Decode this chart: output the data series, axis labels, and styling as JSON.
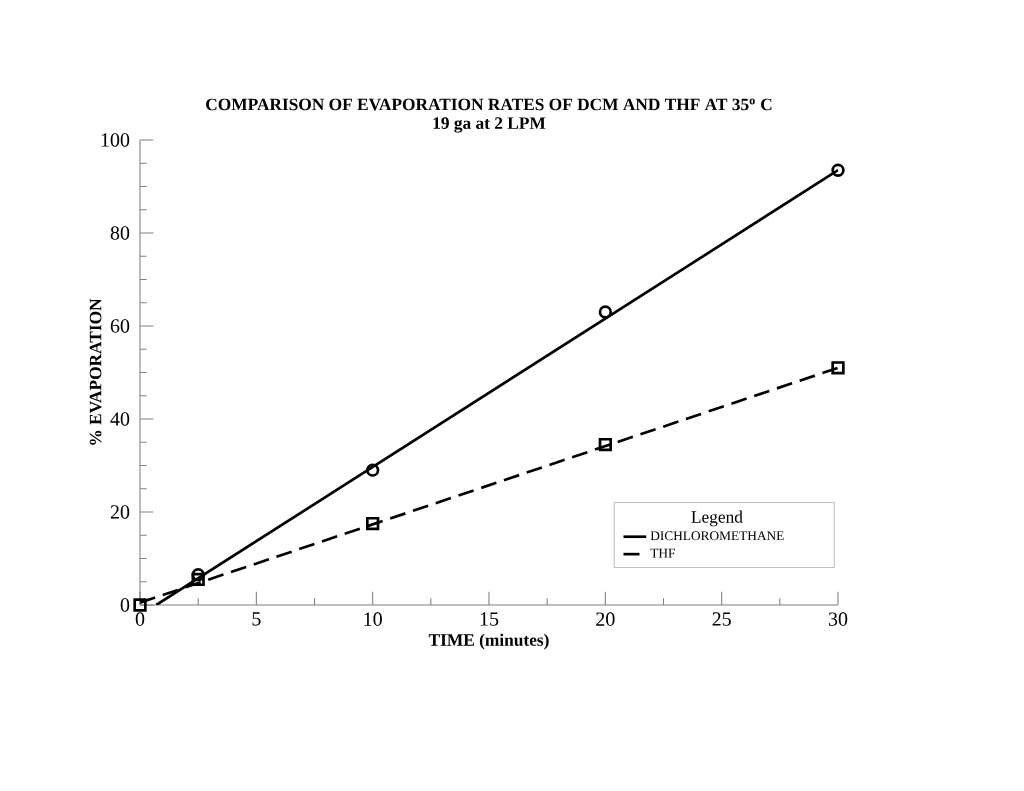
{
  "chart_data": {
    "type": "line",
    "title": "COMPARISON OF EVAPORATION RATES OF DCM AND THF AT 35$^{o}$ C",
    "subtitle": "19 ga at 2 LPM",
    "xlabel": "TIME (minutes)",
    "ylabel": "% EVAPORATION",
    "legend_title": "Legend",
    "legend": "bottom right",
    "xlim": [
      0,
      30
    ],
    "xticks": [
      0,
      5,
      10,
      15,
      20,
      25,
      30
    ],
    "ylim": [
      0,
      100
    ],
    "yticks": [
      0,
      20,
      40,
      60,
      80,
      100
    ],
    "grid": false,
    "series": [
      {
        "name": "DICHLOROMETHANE",
        "color": "#000000",
        "marker": "none",
        "line_style": "solid",
        "x": [
          0.7,
          30
        ],
        "values": [
          0,
          93.5
        ]
      },
      {
        "name": "THF",
        "color": "#000000",
        "marker": "none",
        "line_style": "dashed",
        "x": [
          0,
          30
        ],
        "values": [
          0.5,
          51
        ]
      },
      {
        "color": "#000000",
        "type": "scatter",
        "marker": "circle",
        "x": [
          2.5,
          10,
          20,
          30
        ],
        "values": [
          6.5,
          29,
          63,
          93.5
        ]
      },
      {
        "color": "#000000",
        "type": "scatter",
        "marker": "square",
        "x": [
          0,
          2.5,
          10,
          20,
          30
        ],
        "values": [
          0,
          5.5,
          17.5,
          34.5,
          51
        ]
      }
    ]
  }
}
